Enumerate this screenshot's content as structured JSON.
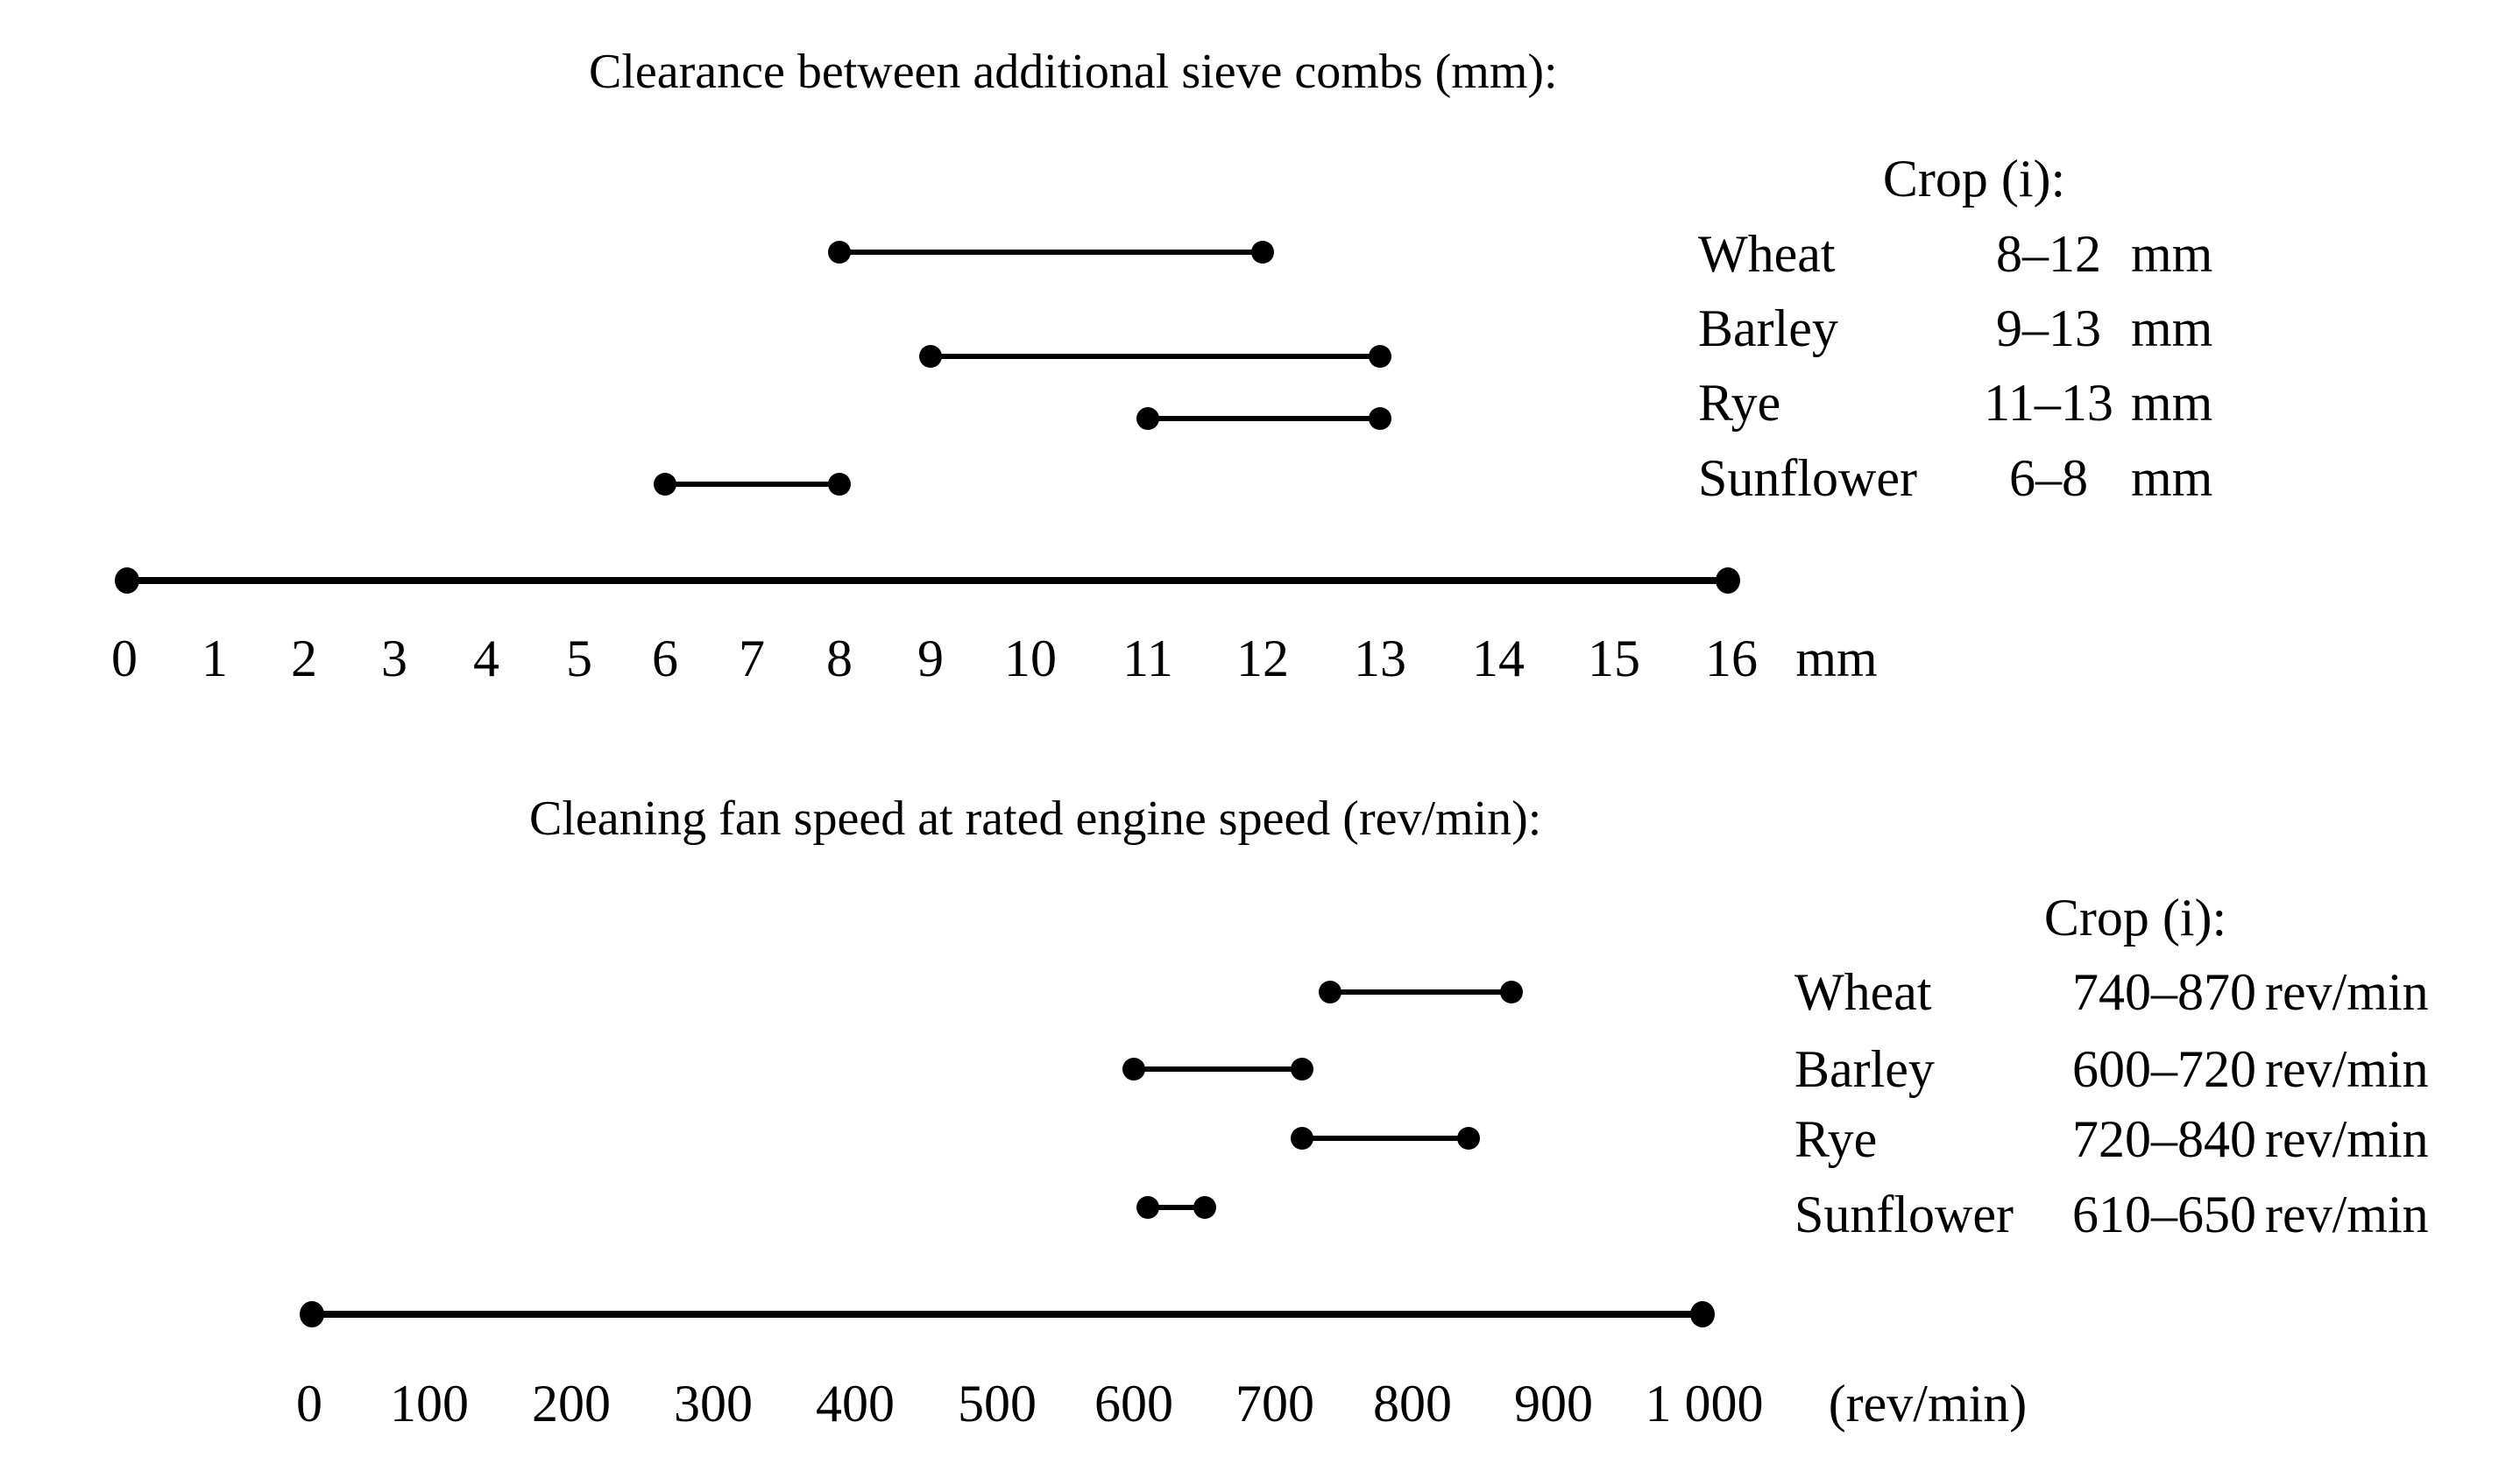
{
  "colors": {
    "background": "#ffffff",
    "ink": "#000000"
  },
  "chart_data": [
    {
      "type": "interval",
      "orientation": "horizontal",
      "title": "Clearance between additional sieve combs (mm):",
      "legend": {
        "title": "Crop (i):",
        "position": "right",
        "rows": [
          {
            "crop": "Wheat",
            "range": "8–12",
            "unit": "mm",
            "min": 8,
            "max": 12
          },
          {
            "crop": "Barley",
            "range": "9–13",
            "unit": "mm",
            "min": 9,
            "max": 13
          },
          {
            "crop": "Rye",
            "range": "11–13",
            "unit": "mm",
            "min": 11,
            "max": 13
          },
          {
            "crop": "Sunflower",
            "range": "6–8",
            "unit": "mm",
            "min": 6,
            "max": 8
          }
        ]
      },
      "axis": {
        "min": 0,
        "max": 16,
        "step": 1,
        "tick_labels": [
          "0",
          "1",
          "2",
          "3",
          "4",
          "5",
          "6",
          "7",
          "8",
          "9",
          "10",
          "11",
          "12",
          "13",
          "14",
          "15",
          "16"
        ],
        "unit_label": "mm",
        "grid": false
      }
    },
    {
      "type": "interval",
      "orientation": "horizontal",
      "title": "Cleaning fan speed at rated engine speed (rev/min):",
      "legend": {
        "title": "Crop (i):",
        "position": "right",
        "rows": [
          {
            "crop": "Wheat",
            "range": "740–870",
            "unit": "rev/min",
            "min": 740,
            "max": 870
          },
          {
            "crop": "Barley",
            "range": "600–720",
            "unit": "rev/min",
            "min": 600,
            "max": 720
          },
          {
            "crop": "Rye",
            "range": "720–840",
            "unit": "rev/min",
            "min": 720,
            "max": 840
          },
          {
            "crop": "Sunflower",
            "range": "610–650",
            "unit": "rev/min",
            "min": 610,
            "max": 650
          }
        ]
      },
      "axis": {
        "min": 0,
        "max": 1000,
        "step": 100,
        "tick_labels": [
          "0",
          "100",
          "200",
          "300",
          "400",
          "500",
          "600",
          "700",
          "800",
          "900",
          "1 000"
        ],
        "unit_label": "(rev/min)",
        "grid": false
      }
    }
  ]
}
